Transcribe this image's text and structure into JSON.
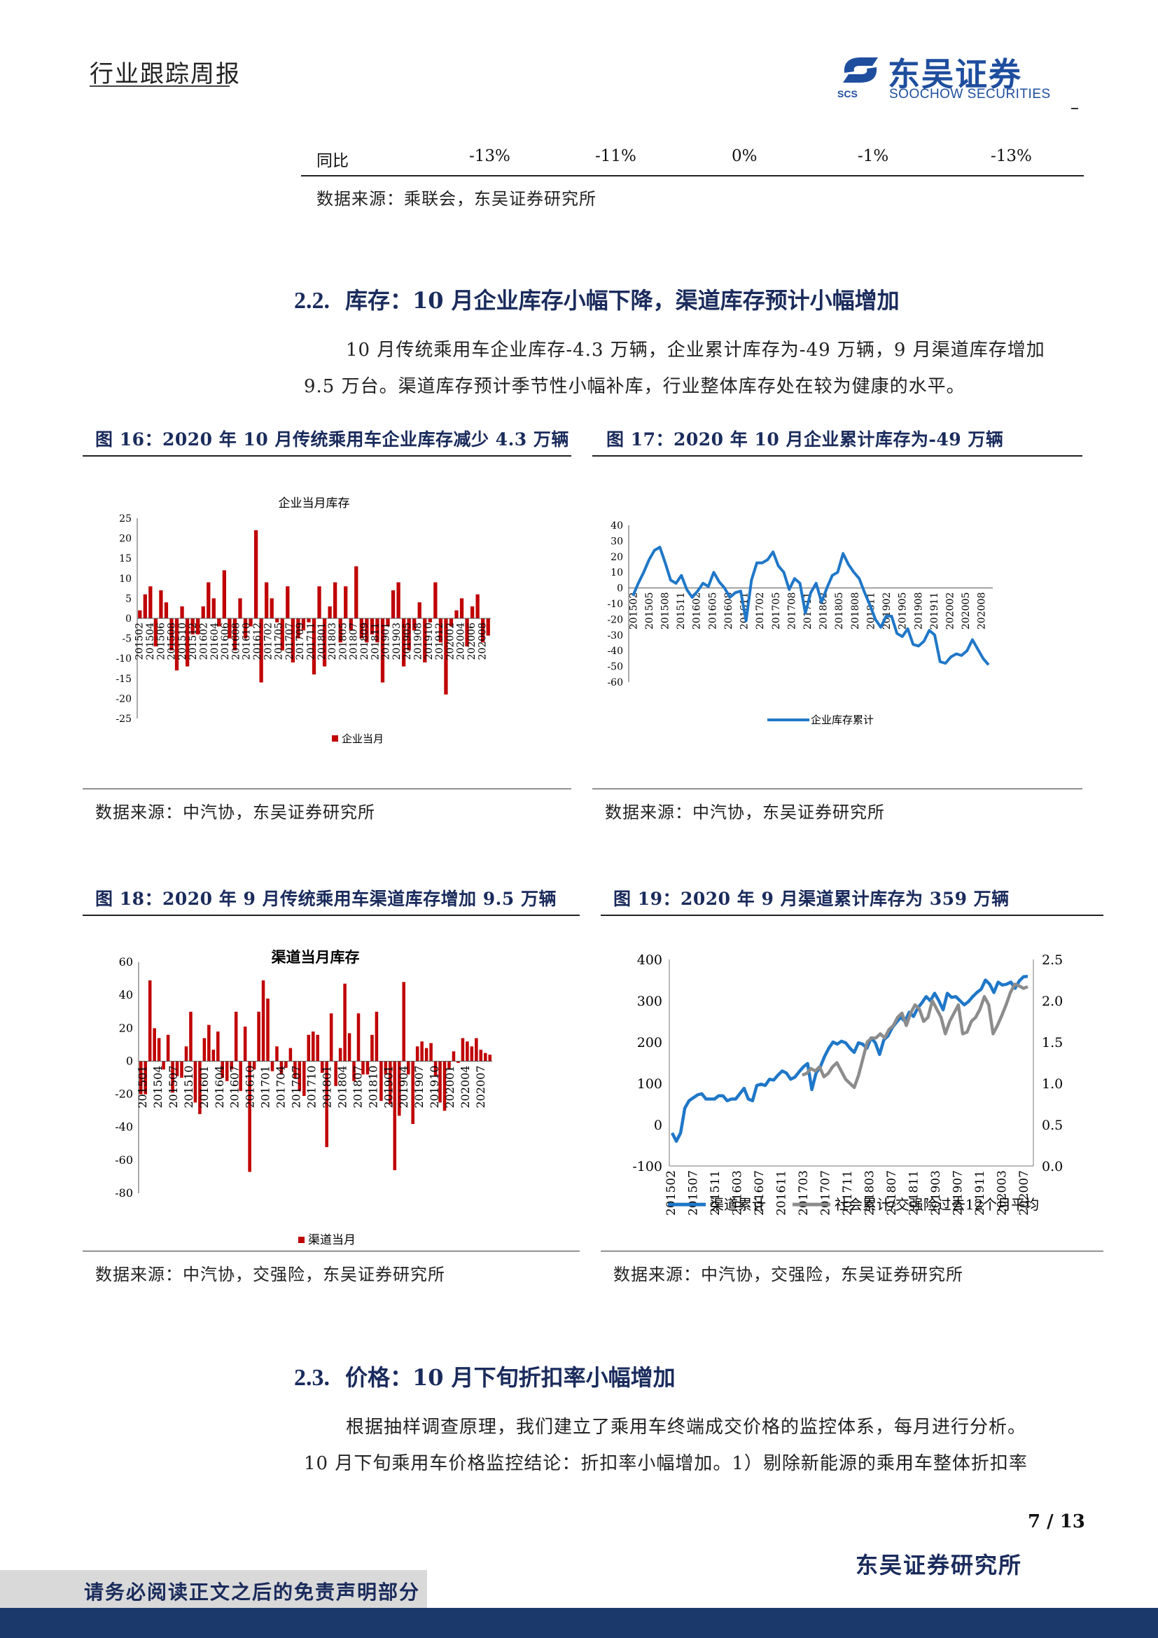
{
  "header": {
    "title": "行业跟踪周报",
    "logo_cn": "东吴证券",
    "logo_en": "SOOCHOW SECURITIES",
    "logo_abbr": "SCS"
  },
  "table_tail": {
    "label": "同比",
    "values": [
      "-13%",
      "-11%",
      "0%",
      "-1%",
      "-13%"
    ],
    "source": "数据来源：乘联会，东吴证券研究所"
  },
  "section_22": {
    "number": "2.2.",
    "title": "库存：10 月企业库存小幅下降，渠道库存预计小幅增加",
    "para_line1": "10 月传统乘用车企业库存-4.3 万辆，企业累计库存为-49 万辆，9 月渠道库存增加",
    "para_line2": "9.5 万台。渠道库存预计季节性小幅补库，行业整体库存处在较为健康的水平。"
  },
  "fig16": {
    "title": "图 16：2020 年 10 月传统乘用车企业库存减少 4.3 万辆",
    "source": "数据来源：中汽协，东吴证券研究所"
  },
  "fig17": {
    "title": "图 17：2020 年 10 月企业累计库存为-49 万辆",
    "source": "数据来源：中汽协，东吴证券研究所"
  },
  "fig18": {
    "title": "图 18：2020 年 9 月传统乘用车渠道库存增加 9.5 万辆",
    "source": "数据来源：中汽协，交强险，东吴证券研究所"
  },
  "fig19": {
    "title": "图 19：2020 年 9 月渠道累计库存为 359 万辆",
    "source": "数据来源：中汽协，交强险，东吴证券研究所"
  },
  "section_23": {
    "number": "2.3.",
    "title": "价格：10 月下旬折扣率小幅增加",
    "para_line1": "根据抽样调查原理，我们建立了乘用车终端成交价格的监控体系，每月进行分析。",
    "para_line2": "10 月下旬乘用车价格监控结论：折扣率小幅增加。1）剔除新能源的乘用车整体折扣率"
  },
  "footer": {
    "page": "7 / 13",
    "org": "东吴证券研究所",
    "disclaimer": "请务必阅读正文之后的免责声明部分"
  },
  "colors": {
    "bar_red": "#c00000",
    "line_blue": "#1f77c8",
    "line_gray": "#8c8c8c",
    "title_navy": "#1a2b5c"
  },
  "chart_data": [
    {
      "type": "bar",
      "title": "企业当月库存",
      "legend": "企业当月",
      "ylim": [
        -25,
        25
      ],
      "yticks": [
        25,
        20,
        15,
        10,
        5,
        0,
        -5,
        -10,
        -15,
        -20,
        -25
      ],
      "tick_labels": [
        "201502",
        "201504",
        "201506",
        "201508",
        "201510",
        "201512",
        "201602",
        "201604",
        "201606",
        "201608",
        "201610",
        "201612",
        "201702",
        "201705",
        "201707",
        "201709",
        "201711",
        "201801",
        "201803",
        "201805",
        "201807",
        "201809",
        "201811",
        "201901",
        "201903",
        "201905",
        "201908",
        "201910",
        "201912",
        "202002",
        "202004",
        "202006",
        "202008"
      ],
      "values": [
        2,
        6,
        8,
        -7,
        7,
        4,
        -8,
        -13,
        3,
        -12,
        -4,
        -4,
        3,
        9,
        5,
        -2,
        12,
        -5,
        -8,
        5,
        -5,
        -2,
        22,
        -16,
        9,
        5,
        -1,
        -8,
        8,
        -11,
        -5,
        -3,
        -1,
        -14,
        8,
        -12,
        3,
        9,
        -6,
        8,
        -3,
        13,
        -5,
        -6,
        -4,
        -6,
        -16,
        -2,
        7,
        9,
        -12,
        -8,
        -3,
        4,
        -11,
        -1,
        9,
        -6,
        -19,
        -2,
        2,
        5,
        -7,
        3,
        6,
        -6,
        -4.3
      ]
    },
    {
      "type": "line",
      "legend": "企业库存累计",
      "ylim": [
        -60,
        40
      ],
      "yticks": [
        40,
        30,
        20,
        10,
        0,
        -10,
        -20,
        -30,
        -40,
        -50,
        -60
      ],
      "tick_labels": [
        "201502",
        "201505",
        "201508",
        "201511",
        "201602",
        "201605",
        "201608",
        "201611",
        "201702",
        "201705",
        "201708",
        "201711",
        "201802",
        "201805",
        "201808",
        "201811",
        "201902",
        "201905",
        "201908",
        "201911",
        "202002",
        "202005",
        "202008"
      ],
      "values": [
        -5,
        3,
        10,
        18,
        24,
        26,
        16,
        5,
        3,
        8,
        -1,
        -6,
        -2,
        3,
        1,
        10,
        4,
        0,
        -6,
        -3,
        -2,
        -21,
        5,
        16,
        16,
        18,
        23,
        14,
        10,
        -1,
        6,
        3,
        -16,
        -3,
        3,
        -9,
        0,
        8,
        10,
        22,
        15,
        10,
        6,
        -3,
        -11,
        -20,
        -25,
        -18,
        -18,
        -29,
        -31,
        -26,
        -36,
        -37,
        -34,
        -27,
        -30,
        -47,
        -48,
        -44,
        -42,
        -43,
        -40,
        -33,
        -39,
        -45,
        -49
      ]
    },
    {
      "type": "bar",
      "title": "渠道当月库存",
      "legend": "渠道当月",
      "ylim": [
        -80,
        60
      ],
      "yticks": [
        60,
        40,
        20,
        0,
        -20,
        -40,
        -60,
        -80
      ],
      "tick_labels": [
        "201501",
        "201504",
        "201507",
        "201510",
        "201601",
        "201604",
        "201607",
        "201610",
        "201701",
        "201704",
        "201707",
        "201710",
        "201801",
        "201804",
        "201807",
        "201810",
        "201901",
        "201904",
        "201907",
        "201910",
        "202001",
        "202004",
        "202007"
      ],
      "values": [
        -20,
        -20,
        49,
        20,
        14,
        -5,
        16,
        -19,
        -9,
        -10,
        9,
        30,
        -25,
        -32,
        14,
        22,
        7,
        18,
        -10,
        -12,
        -5,
        30,
        -18,
        21,
        -67,
        -5,
        30,
        49,
        38,
        -6,
        9,
        -8,
        -4,
        8,
        -10,
        -18,
        -21,
        16,
        18,
        16,
        -7,
        -52,
        29,
        -15,
        8,
        47,
        17,
        -12,
        29,
        -8,
        -8,
        16,
        30,
        -24,
        -8,
        -26,
        -66,
        -33,
        48,
        -8,
        -38,
        9,
        12,
        8,
        11,
        -9,
        -25,
        -30,
        -5,
        6,
        -1,
        14,
        12,
        9,
        14,
        7,
        5,
        4
      ],
      "note": "values in 10k units (万辆)"
    },
    {
      "type": "line",
      "series": [
        {
          "name": "渠道累计",
          "axis": "left",
          "values": [
            -20,
            -40,
            -20,
            40,
            58,
            65,
            72,
            75,
            62,
            62,
            62,
            70,
            70,
            58,
            62,
            62,
            75,
            88,
            62,
            58,
            95,
            98,
            95,
            110,
            108,
            120,
            130,
            125,
            110,
            115,
            128,
            140,
            148,
            85,
            125,
            140,
            165,
            185,
            200,
            195,
            202,
            198,
            185,
            175,
            198,
            195,
            185,
            210,
            198,
            170,
            205,
            215,
            235,
            248,
            260,
            250,
            272,
            262,
            282,
            295,
            310,
            300,
            318,
            300,
            278,
            318,
            308,
            310,
            300,
            290,
            298,
            310,
            320,
            328,
            350,
            340,
            320,
            345,
            338,
            340,
            345,
            330,
            348,
            358,
            359
          ]
        },
        {
          "name": "社会累计/交强险过去12个月平均",
          "axis": "right",
          "values": [
            1.1,
            1.12,
            1.18,
            1.15,
            1.2,
            1.08,
            1.12,
            1.2,
            1.25,
            1.15,
            1.05,
            1.0,
            0.95,
            1.1,
            1.3,
            1.5,
            1.55,
            1.55,
            1.6,
            1.55,
            1.65,
            1.7,
            1.8,
            1.85,
            1.7,
            1.85,
            1.95,
            1.9,
            1.75,
            1.8,
            2.0,
            1.9,
            1.8,
            1.6,
            1.75,
            1.85,
            1.95,
            1.6,
            1.62,
            1.75,
            1.8,
            1.9,
            2.05,
            1.95,
            1.6,
            1.7,
            1.82,
            1.95,
            2.1,
            2.2,
            2.18,
            2.15,
            2.17
          ]
        }
      ],
      "ylim_left": [
        -100,
        400
      ],
      "ylim_right": [
        0.0,
        2.5
      ],
      "yticks_left": [
        400,
        300,
        200,
        100,
        0,
        -100
      ],
      "yticks_right": [
        "2.5",
        "2.0",
        "1.5",
        "1.0",
        "0.5",
        "0.0"
      ],
      "tick_labels": [
        "201502",
        "201507",
        "201511",
        "201603",
        "201607",
        "201611",
        "201703",
        "201707",
        "201711",
        "201803",
        "201807",
        "201811",
        "201903",
        "201907",
        "201911",
        "202003",
        "202007"
      ]
    }
  ]
}
